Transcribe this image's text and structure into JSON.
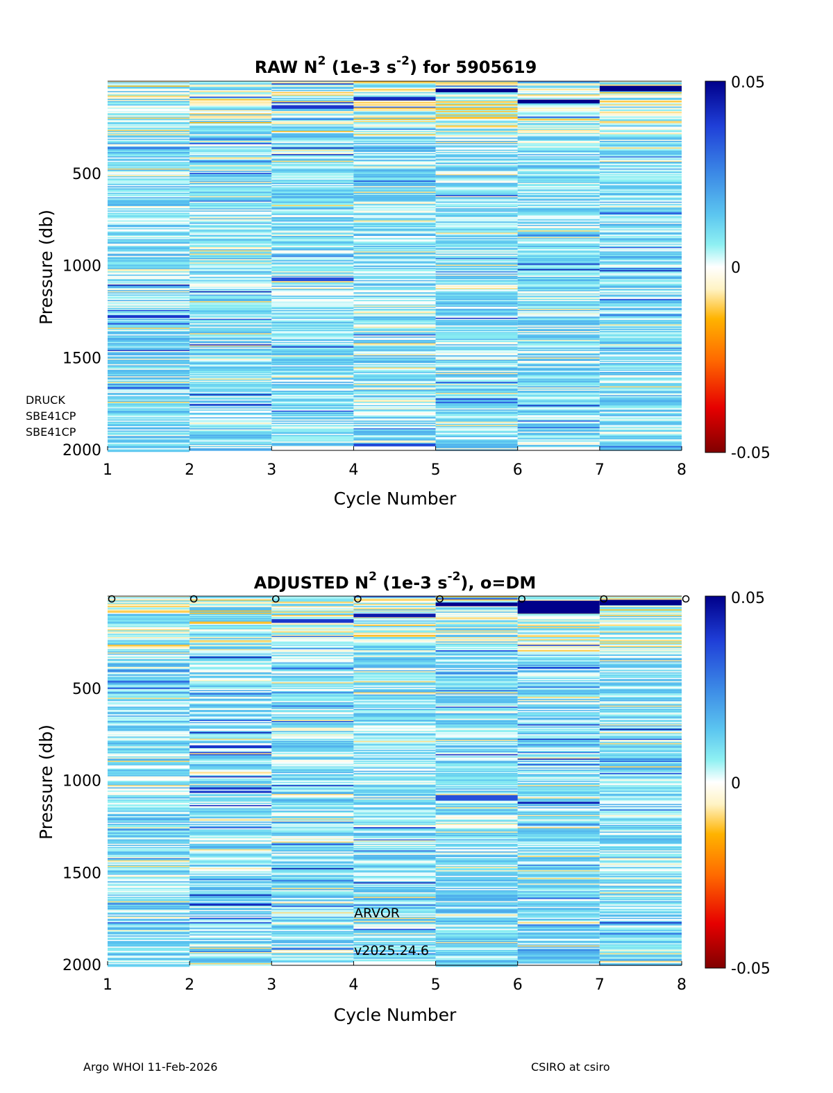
{
  "footer": {
    "left": "Argo WHOI 11-Feb-2026",
    "right": "CSIRO at csiro"
  },
  "colors": {
    "scale": [
      "#800000",
      "#e60000",
      "#ff6a00",
      "#ffb300",
      "#fff3c4",
      "#ffffff",
      "#c8fbf6",
      "#8ef0f2",
      "#5cc6f0",
      "#3c8ae6",
      "#1f3fd8",
      "#00008a"
    ]
  },
  "chart_data": [
    {
      "type": "heatmap",
      "panel": "raw",
      "title_parts": [
        "RAW N",
        "2",
        " (1e-3 s",
        "-2",
        ") for 5905619"
      ],
      "xlabel": "Cycle Number",
      "ylabel": "Pressure (db)",
      "xlim": [
        1,
        8
      ],
      "ylim": [
        2000,
        0
      ],
      "x_ticks": [
        1,
        2,
        3,
        4,
        5,
        6,
        7,
        8
      ],
      "y_ticks": [
        500,
        1000,
        1500,
        2000
      ],
      "cycles": [
        1,
        2,
        3,
        4,
        5,
        6,
        7
      ],
      "profile_max_pressure": [
        2010,
        2000,
        1985,
        1980,
        2000,
        1990,
        2000
      ],
      "colorbar": {
        "min": -0.05,
        "max": 0.05,
        "tick_labels": [
          "0.05",
          "0",
          "-0.05"
        ]
      },
      "sensor_annotations": [
        "DRUCK",
        "SBE41CP",
        "SBE41CP"
      ],
      "notable_layers": [
        {
          "cycle": 5,
          "p_top": 40,
          "p_bottom": 60,
          "value": 0.05
        },
        {
          "cycle": 6,
          "p_top": 100,
          "p_bottom": 120,
          "value": 0.05
        },
        {
          "cycle": 7,
          "p_top": 25,
          "p_bottom": 55,
          "value": 0.05
        },
        {
          "cycle": 4,
          "p_top": 85,
          "p_bottom": 105,
          "value": 0.042
        },
        {
          "cycle": 3,
          "p_top": 130,
          "p_bottom": 150,
          "value": 0.04
        },
        {
          "cycle": 1,
          "p_top": 1270,
          "p_bottom": 1285,
          "value": 0.04
        },
        {
          "cycle": 3,
          "p_top": 1065,
          "p_bottom": 1085,
          "value": 0.035
        }
      ]
    },
    {
      "type": "heatmap",
      "panel": "adjusted",
      "title_parts": [
        "ADJUSTED N",
        "2",
        " (1e-3 s",
        "-2",
        "), o=DM"
      ],
      "xlabel": "Cycle Number",
      "ylabel": "Pressure (db)",
      "xlim": [
        1,
        8
      ],
      "ylim": [
        2000,
        0
      ],
      "x_ticks": [
        1,
        2,
        3,
        4,
        5,
        6,
        7,
        8
      ],
      "y_ticks": [
        500,
        1000,
        1500,
        2000
      ],
      "cycles": [
        1,
        2,
        3,
        4,
        5,
        6,
        7
      ],
      "profile_max_pressure": [
        2010,
        2000,
        1985,
        1980,
        2010,
        1990,
        2000
      ],
      "colorbar": {
        "min": -0.05,
        "max": 0.05,
        "tick_labels": [
          "0.05",
          "0",
          "-0.05"
        ]
      },
      "dm_marker_cycles": [
        1,
        2,
        3,
        4,
        5,
        6,
        7,
        8
      ],
      "float_annotations": [
        "ARVOR",
        "v2025.24.6"
      ],
      "notable_layers": [
        {
          "cycle": 5,
          "p_top": 35,
          "p_bottom": 55,
          "value": 0.05
        },
        {
          "cycle": 6,
          "p_top": 25,
          "p_bottom": 95,
          "value": 0.05
        },
        {
          "cycle": 7,
          "p_top": 20,
          "p_bottom": 50,
          "value": 0.05
        },
        {
          "cycle": 4,
          "p_top": 95,
          "p_bottom": 115,
          "value": 0.045
        },
        {
          "cycle": 3,
          "p_top": 125,
          "p_bottom": 145,
          "value": 0.04
        },
        {
          "cycle": 2,
          "p_top": 810,
          "p_bottom": 825,
          "value": 0.04
        },
        {
          "cycle": 5,
          "p_top": 1080,
          "p_bottom": 1110,
          "value": 0.035
        }
      ]
    }
  ]
}
